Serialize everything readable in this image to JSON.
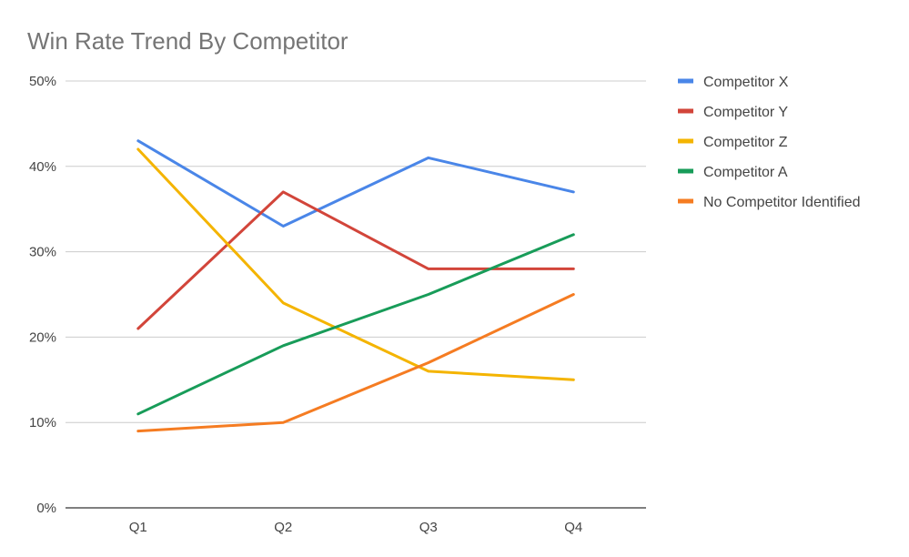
{
  "chart_data": {
    "type": "line",
    "title": "Win Rate Trend By Competitor",
    "xlabel": "",
    "ylabel": "",
    "categories": [
      "Q1",
      "Q2",
      "Q3",
      "Q4"
    ],
    "ylim": [
      0,
      50
    ],
    "yticks": [
      0,
      10,
      20,
      30,
      40,
      50
    ],
    "ytick_labels": [
      "0%",
      "10%",
      "20%",
      "30%",
      "40%",
      "50%"
    ],
    "grid": true,
    "legend_position": "right",
    "series": [
      {
        "name": "Competitor X",
        "color": "#4a86e8",
        "values": [
          43,
          33,
          41,
          37
        ]
      },
      {
        "name": "Competitor Y",
        "color": "#d2453a",
        "values": [
          21,
          37,
          28,
          28
        ]
      },
      {
        "name": "Competitor Z",
        "color": "#f4b400",
        "values": [
          42,
          24,
          16,
          15
        ]
      },
      {
        "name": "Competitor A",
        "color": "#189c59",
        "values": [
          11,
          19,
          25,
          32
        ]
      },
      {
        "name": "No Competitor Identified",
        "color": "#f57c22",
        "values": [
          9,
          10,
          17,
          25
        ]
      }
    ]
  }
}
